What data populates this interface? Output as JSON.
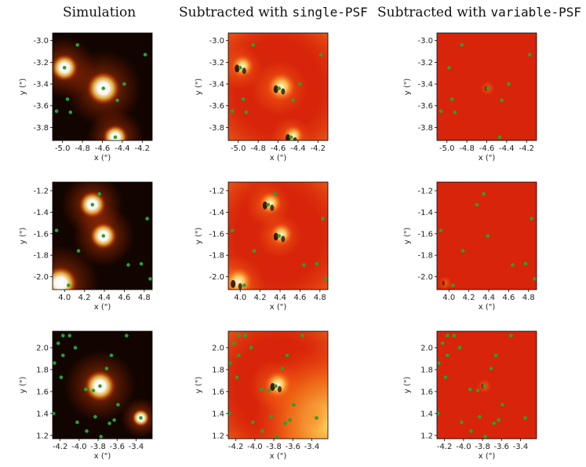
{
  "headers": {
    "simulation": "Simulation",
    "single_prefix": "Subtracted with ",
    "single_code": "single-PSF",
    "variable_prefix": "Subtracted with ",
    "variable_code": "variable-PSF"
  },
  "axis_labels": {
    "x": "x (\")",
    "y": "y (\")"
  },
  "colors": {
    "sim_background": "#120500",
    "residual_background": "#d7240a",
    "star_marker": "#2ca02c",
    "bright_source": "#ffffff",
    "residual_hot": "#ffd24a"
  },
  "chart_data": [
    {
      "type": "scatter",
      "row": 1,
      "xlim": [
        -5.1,
        -4.1
      ],
      "ylim": [
        -3.92,
        -2.93
      ],
      "xticks": [
        -5.0,
        -4.8,
        -4.6,
        -4.4,
        -4.2
      ],
      "yticks": [
        -3.8,
        -3.6,
        -3.4,
        -3.2,
        -3.0
      ],
      "xtick_labels": [
        "-5.0",
        "-4.8",
        "-4.6",
        "-4.4",
        "-4.2"
      ],
      "ytick_labels": [
        "-3.8",
        "-3.6",
        "-3.4",
        "-3.2",
        "-3.0"
      ],
      "stars": [
        {
          "x": -4.98,
          "y": -3.25
        },
        {
          "x": -4.59,
          "y": -3.44
        },
        {
          "x": -4.47,
          "y": -3.89
        },
        {
          "x": -4.85,
          "y": -3.04
        },
        {
          "x": -4.17,
          "y": -3.13
        },
        {
          "x": -4.38,
          "y": -3.4
        },
        {
          "x": -4.95,
          "y": -3.54
        },
        {
          "x": -4.45,
          "y": -3.55
        },
        {
          "x": -5.06,
          "y": -3.65
        },
        {
          "x": -4.92,
          "y": -3.66
        }
      ],
      "bright_sources": [
        {
          "x": -4.98,
          "y": -3.25,
          "strength": 0.7
        },
        {
          "x": -4.59,
          "y": -3.44,
          "strength": 1.0
        },
        {
          "x": -4.47,
          "y": -3.89,
          "strength": 0.6
        }
      ]
    },
    {
      "type": "scatter",
      "row": 2,
      "xlim": [
        3.88,
        4.88
      ],
      "ylim": [
        -2.12,
        -1.12
      ],
      "xticks": [
        4.0,
        4.2,
        4.4,
        4.6,
        4.8
      ],
      "yticks": [
        -2.0,
        -1.8,
        -1.6,
        -1.4,
        -1.2
      ],
      "xtick_labels": [
        "4.0",
        "4.2",
        "4.4",
        "4.6",
        "4.8"
      ],
      "ytick_labels": [
        "-2.0",
        "-1.8",
        "-1.6",
        "-1.4",
        "-1.2"
      ],
      "stars": [
        {
          "x": 4.28,
          "y": -1.33
        },
        {
          "x": 4.39,
          "y": -1.62
        },
        {
          "x": 4.04,
          "y": -2.08
        },
        {
          "x": 4.35,
          "y": -1.23
        },
        {
          "x": 3.92,
          "y": -1.57
        },
        {
          "x": 4.83,
          "y": -1.46
        },
        {
          "x": 4.14,
          "y": -1.76
        },
        {
          "x": 4.64,
          "y": -1.89
        },
        {
          "x": 4.77,
          "y": -1.88
        },
        {
          "x": 4.86,
          "y": -2.02
        }
      ],
      "bright_sources": [
        {
          "x": 4.28,
          "y": -1.33,
          "strength": 0.7
        },
        {
          "x": 4.39,
          "y": -1.62,
          "strength": 0.7
        },
        {
          "x": 3.96,
          "y": -2.06,
          "strength": 1.0
        }
      ]
    },
    {
      "type": "scatter",
      "row": 3,
      "xlim": [
        -4.28,
        -3.23
      ],
      "ylim": [
        1.17,
        2.15
      ],
      "xticks": [
        -4.2,
        -4.0,
        -3.8,
        -3.6,
        -3.4
      ],
      "yticks": [
        1.2,
        1.4,
        1.6,
        1.8,
        2.0
      ],
      "xtick_labels": [
        "-4.2",
        "-4.0",
        "-3.8",
        "-3.6",
        "-3.4"
      ],
      "ytick_labels": [
        "1.2",
        "1.4",
        "1.6",
        "1.8",
        "2.0"
      ],
      "stars": [
        {
          "x": -3.78,
          "y": 1.65
        },
        {
          "x": -4.17,
          "y": 2.11
        },
        {
          "x": -4.1,
          "y": 2.11
        },
        {
          "x": -3.5,
          "y": 2.11
        },
        {
          "x": -4.22,
          "y": 2.04
        },
        {
          "x": -4.04,
          "y": 2.0
        },
        {
          "x": -4.17,
          "y": 1.93
        },
        {
          "x": -3.66,
          "y": 1.93
        },
        {
          "x": -4.26,
          "y": 1.86
        },
        {
          "x": -3.71,
          "y": 1.81
        },
        {
          "x": -4.19,
          "y": 1.73
        },
        {
          "x": -3.93,
          "y": 1.62
        },
        {
          "x": -3.85,
          "y": 1.61
        },
        {
          "x": -3.59,
          "y": 1.48
        },
        {
          "x": -4.27,
          "y": 1.4
        },
        {
          "x": -3.83,
          "y": 1.37
        },
        {
          "x": -3.35,
          "y": 1.36
        },
        {
          "x": -3.63,
          "y": 1.34
        },
        {
          "x": -4.02,
          "y": 1.32
        },
        {
          "x": -3.68,
          "y": 1.31
        },
        {
          "x": -3.92,
          "y": 1.24
        },
        {
          "x": -3.77,
          "y": 1.19
        }
      ],
      "bright_sources": [
        {
          "x": -3.78,
          "y": 1.65,
          "strength": 0.9
        },
        {
          "x": -3.35,
          "y": 1.36,
          "strength": 0.25
        }
      ]
    }
  ]
}
